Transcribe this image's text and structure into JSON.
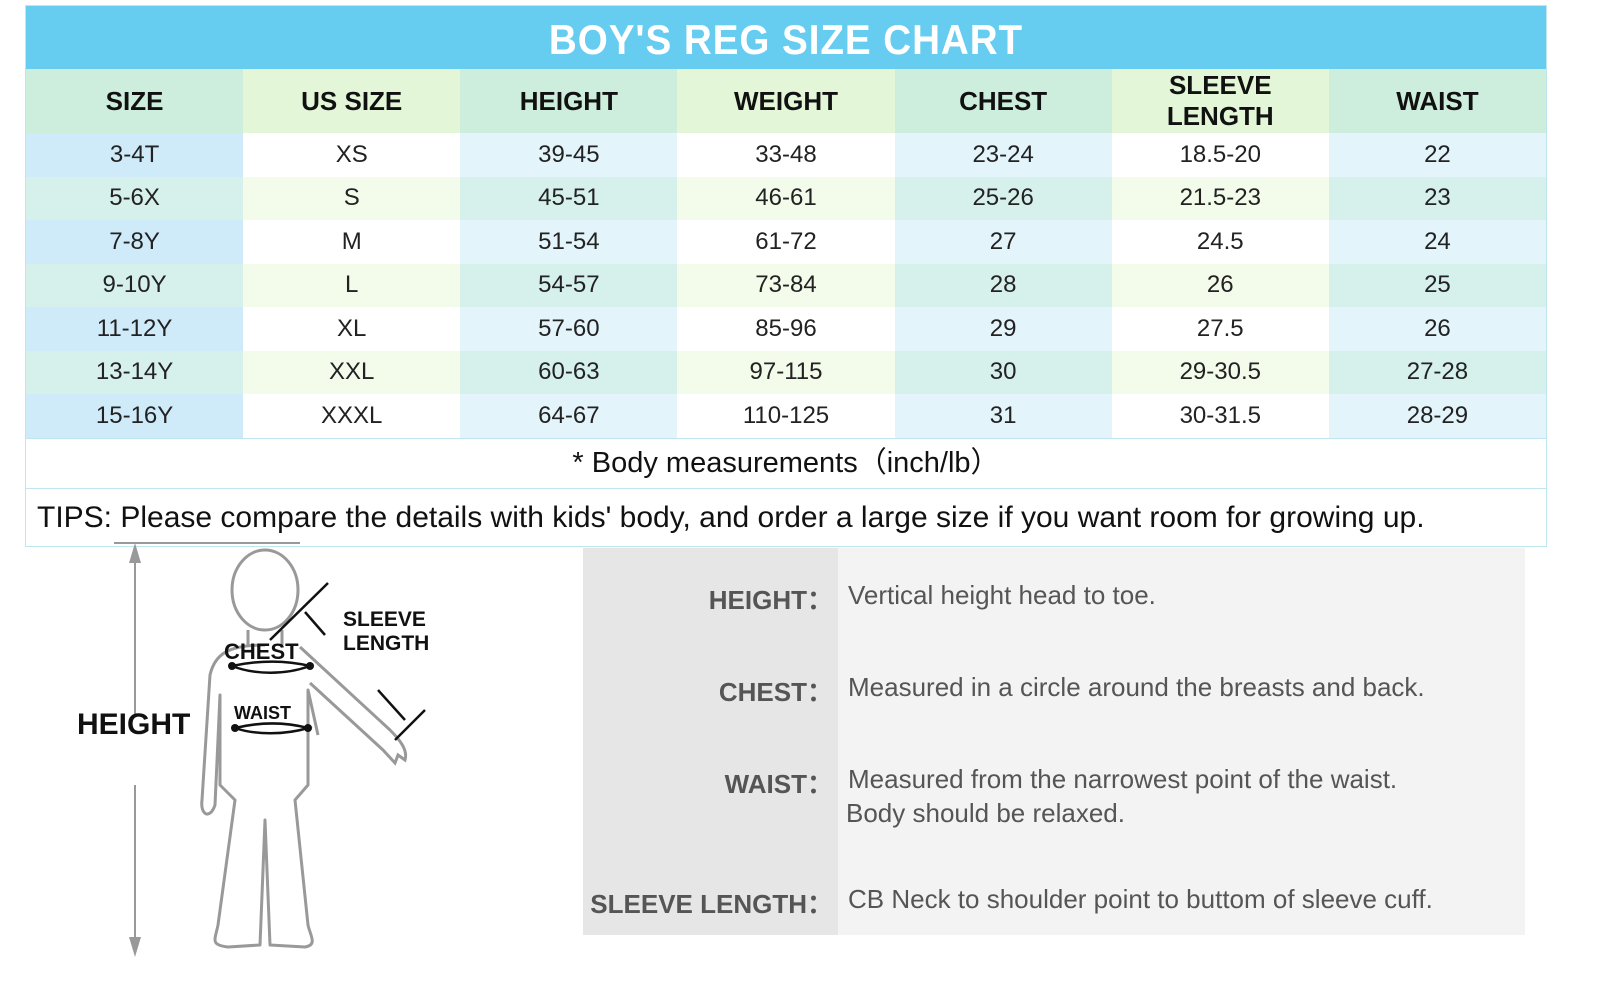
{
  "title": "BOY'S REG SIZE CHART",
  "columns": [
    "SIZE",
    "US SIZE",
    "HEIGHT",
    "WEIGHT",
    "CHEST",
    "SLEEVE LENGTH",
    "WAIST"
  ],
  "rows": [
    [
      "3-4T",
      "XS",
      "39-45",
      "33-48",
      "23-24",
      "18.5-20",
      "22"
    ],
    [
      "5-6X",
      "S",
      "45-51",
      "46-61",
      "25-26",
      "21.5-23",
      "23"
    ],
    [
      "7-8Y",
      "M",
      "51-54",
      "61-72",
      "27",
      "24.5",
      "24"
    ],
    [
      "9-10Y",
      "L",
      "54-57",
      "73-84",
      "28",
      "26",
      "25"
    ],
    [
      "11-12Y",
      "XL",
      "57-60",
      "85-96",
      "29",
      "27.5",
      "26"
    ],
    [
      "13-14Y",
      "XXL",
      "60-63",
      "97-115",
      "30",
      "29-30.5",
      "27-28"
    ],
    [
      "15-16Y",
      "XXXL",
      "64-67",
      "110-125",
      "31",
      "30-31.5",
      "28-29"
    ]
  ],
  "note": "* Body measurements（inch/lb）",
  "tips": "TIPS: Please compare the details with kids' body, and order a large size if you want room for growing up.",
  "figure": {
    "height": "HEIGHT",
    "chest": "CHEST",
    "waist": "WAIST",
    "sleeve1": "SLEEVE",
    "sleeve2": "LENGTH"
  },
  "definitions": [
    {
      "key": "HEIGHT：",
      "lines": [
        "Vertical height head to toe."
      ]
    },
    {
      "key": "CHEST：",
      "lines": [
        "Measured in a circle around the breasts and back."
      ]
    },
    {
      "key": "WAIST：",
      "lines": [
        "Measured from the narrowest point of the waist.",
        "Body should be relaxed."
      ]
    },
    {
      "key": "SLEEVE LENGTH：",
      "lines": [
        "CB Neck to shoulder point to buttom of sleeve cuff."
      ]
    }
  ],
  "colors": {
    "title_bg": "#66ccf0",
    "header_bg": "#cdeedd",
    "panel_bg": "#f3f3f3"
  }
}
